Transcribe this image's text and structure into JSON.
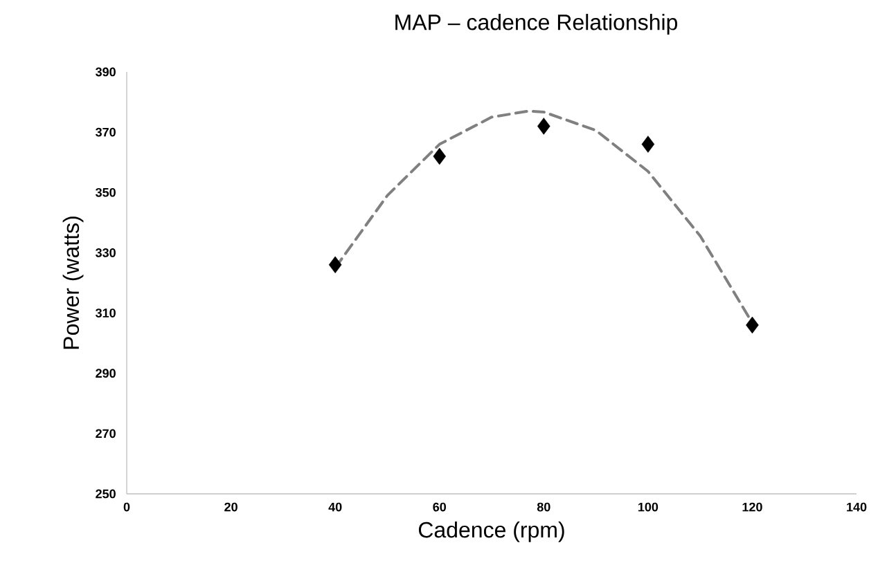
{
  "chart_data": {
    "type": "scatter",
    "title": "MAP – cadence Relationship",
    "xlabel": "Cadence (rpm)",
    "ylabel": "Power (watts)",
    "xlim": [
      0,
      140
    ],
    "ylim": [
      250,
      390
    ],
    "xticks": [
      0,
      20,
      40,
      60,
      80,
      100,
      120,
      140
    ],
    "yticks": [
      250,
      270,
      290,
      310,
      330,
      350,
      370,
      390
    ],
    "series": [
      {
        "color": "#000000",
        "marker": "diamond",
        "x": [
          40,
          60,
          80,
          100,
          120
        ],
        "values": [
          326,
          362,
          372,
          366,
          306
        ]
      },
      {
        "type": "line",
        "color": "#808080",
        "line_style": "dashed",
        "marker": "none",
        "x": [
          40,
          50,
          60,
          70,
          77,
          80,
          90,
          100,
          110,
          120
        ],
        "values": [
          325,
          349,
          366,
          375,
          377,
          376.7,
          370.6,
          357,
          335.6,
          306.7
        ]
      }
    ]
  }
}
